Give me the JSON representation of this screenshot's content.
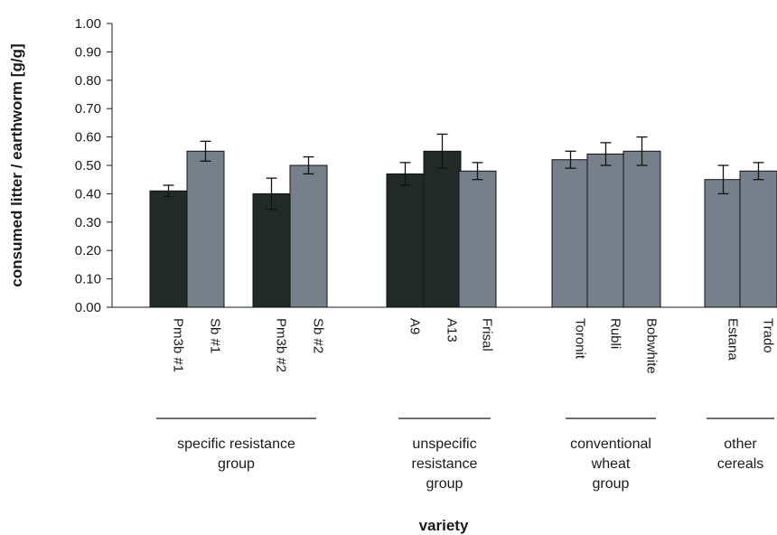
{
  "chart_data": {
    "type": "bar",
    "xlabel": "variety",
    "ylabel": "consumed litter / earthworm [g/g]",
    "ylim": [
      0,
      1
    ],
    "yticks": [
      "0.00",
      "0.10",
      "0.20",
      "0.30",
      "0.40",
      "0.50",
      "0.60",
      "0.70",
      "0.80",
      "0.90",
      "1.00"
    ],
    "grid": false,
    "colors": {
      "dark": "#222a27",
      "grey": "#76808a"
    },
    "categories": [
      "Pm3b #1",
      "Sb #1",
      "Pm3b #2",
      "Sb #2",
      "A9",
      "A13",
      "Frisal",
      "Toronit",
      "Rubli",
      "Bobwhite",
      "Estana",
      "Trado"
    ],
    "values": [
      0.41,
      0.55,
      0.4,
      0.5,
      0.47,
      0.55,
      0.48,
      0.52,
      0.54,
      0.55,
      0.45,
      0.48
    ],
    "errors": [
      0.02,
      0.035,
      0.055,
      0.03,
      0.04,
      0.06,
      0.03,
      0.03,
      0.04,
      0.05,
      0.05,
      0.03
    ],
    "bar_colors": [
      "dark",
      "grey",
      "dark",
      "grey",
      "dark",
      "dark",
      "grey",
      "grey",
      "grey",
      "grey",
      "grey",
      "grey"
    ],
    "groups": [
      {
        "label": [
          "specific resistance",
          "group"
        ],
        "members": [
          "Pm3b #1",
          "Sb #1",
          "Pm3b #2",
          "Sb #2"
        ]
      },
      {
        "label": [
          "unspecific",
          "resistance",
          "group"
        ],
        "members": [
          "A9",
          "A13",
          "Frisal"
        ]
      },
      {
        "label": [
          "conventional",
          "wheat",
          "group"
        ],
        "members": [
          "Toronit",
          "Rubli",
          "Bobwhite"
        ]
      },
      {
        "label": [
          "other",
          "cereals"
        ],
        "members": [
          "Estana",
          "Trado"
        ]
      }
    ]
  }
}
